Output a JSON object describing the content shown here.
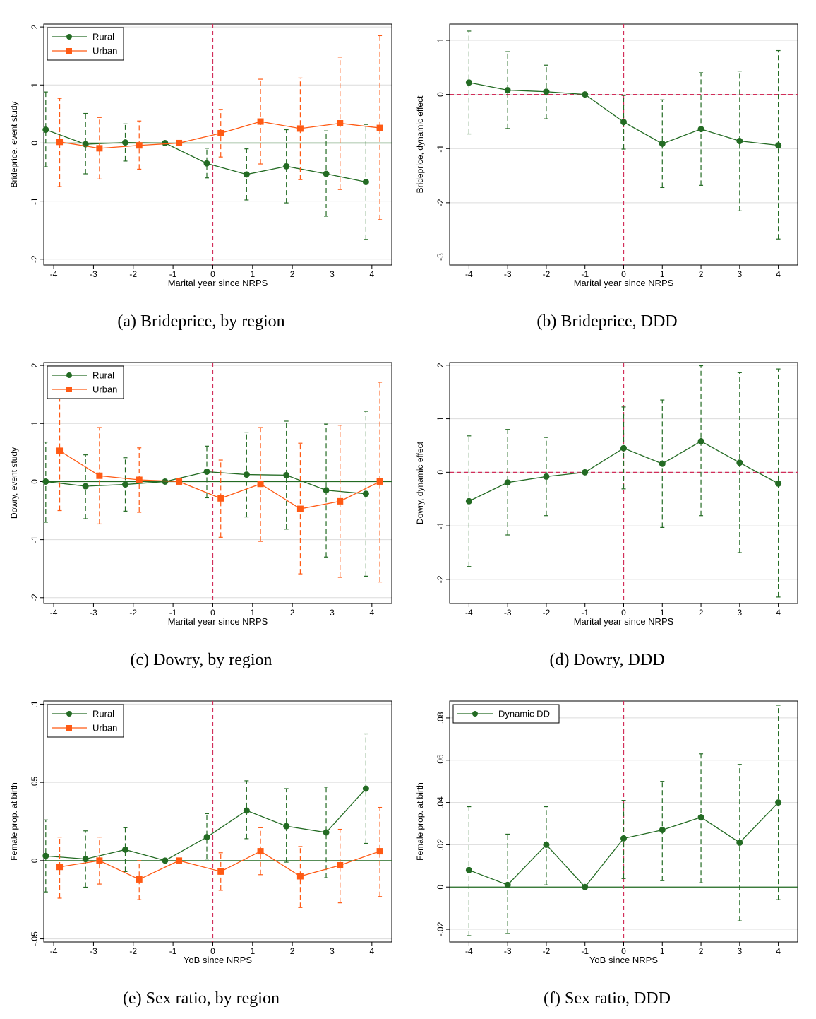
{
  "colors": {
    "rural": "#236B23",
    "urban": "#FF5A14",
    "vline": "#D22E5A",
    "grid": "#DCDCDC"
  },
  "chart_data": [
    {
      "id": "a",
      "type": "line",
      "caption": "(a) Brideprice, by region",
      "xlabel": "Marital year since NRPS",
      "ylabel": "Brideprice, event study",
      "xlim": [
        -4.25,
        4.5
      ],
      "ylim": [
        -2.1,
        2.05
      ],
      "yticks": [
        2,
        1,
        0,
        -1,
        -2
      ],
      "ytick_labels": [
        "2",
        "1",
        "0",
        "-1",
        "-2"
      ],
      "xticks": [
        -4,
        -3,
        -2,
        -1,
        0,
        1,
        2,
        3,
        4
      ],
      "legend_position": "top-left",
      "hline_dashed": false,
      "series": [
        {
          "name": "Rural",
          "marker": "circle",
          "color_key": "rural",
          "x": [
            -4.2,
            -3.2,
            -2.2,
            -1.2,
            -0.15,
            0.85,
            1.85,
            2.85,
            3.85
          ],
          "y": [
            0.23,
            -0.02,
            0.01,
            0.0,
            -0.35,
            -0.54,
            -0.4,
            -0.53,
            -0.67
          ],
          "lo": [
            -0.41,
            -0.53,
            -0.31,
            0.0,
            -0.6,
            -0.98,
            -1.03,
            -1.26,
            -1.66
          ],
          "hi": [
            0.88,
            0.51,
            0.33,
            0.0,
            -0.09,
            -0.1,
            0.23,
            0.21,
            0.32
          ]
        },
        {
          "name": "Urban",
          "marker": "square",
          "color_key": "urban",
          "x": [
            -3.85,
            -2.85,
            -1.85,
            -0.85,
            0.2,
            1.2,
            2.2,
            3.2,
            4.2
          ],
          "y": [
            0.02,
            -0.09,
            -0.04,
            0.0,
            0.17,
            0.37,
            0.25,
            0.34,
            0.26
          ],
          "lo": [
            -0.75,
            -0.62,
            -0.45,
            0.0,
            -0.24,
            -0.36,
            -0.63,
            -0.8,
            -1.32
          ],
          "hi": [
            0.77,
            0.44,
            0.38,
            0.0,
            0.58,
            1.1,
            1.12,
            1.48,
            1.85
          ]
        }
      ]
    },
    {
      "id": "b",
      "type": "line",
      "caption": "(b) Brideprice, DDD",
      "xlabel": "Marital year since NRPS",
      "ylabel": "Brideprice, dynamic effect",
      "xlim": [
        -4.5,
        4.5
      ],
      "ylim": [
        -3.15,
        1.3
      ],
      "yticks": [
        1,
        0,
        -1,
        -2,
        -3
      ],
      "ytick_labels": [
        "1",
        "0",
        "-1",
        "-2",
        "-3"
      ],
      "xticks": [
        -4,
        -3,
        -2,
        -1,
        0,
        1,
        2,
        3,
        4
      ],
      "legend_position": "none",
      "hline_dashed": true,
      "series": [
        {
          "marker": "circle",
          "color_key": "rural",
          "x": [
            -4,
            -3,
            -2,
            -1,
            0,
            1,
            2,
            3,
            4
          ],
          "y": [
            0.22,
            0.08,
            0.05,
            0.0,
            -0.51,
            -0.91,
            -0.64,
            -0.86,
            -0.94
          ],
          "lo": [
            -0.73,
            -0.63,
            -0.45,
            0.0,
            -1.01,
            -1.72,
            -1.68,
            -2.15,
            -2.67
          ],
          "hi": [
            1.17,
            0.79,
            0.54,
            0.0,
            -0.02,
            -0.1,
            0.4,
            0.43,
            0.81
          ]
        }
      ]
    },
    {
      "id": "c",
      "type": "line",
      "caption": "(c) Dowry, by region",
      "xlabel": "Marital year since NRPS",
      "ylabel": "Dowry, event study",
      "xlim": [
        -4.25,
        4.5
      ],
      "ylim": [
        -2.1,
        2.05
      ],
      "yticks": [
        2,
        1,
        0,
        -1,
        -2
      ],
      "ytick_labels": [
        "2",
        "1",
        "0",
        "-1",
        "-2"
      ],
      "xticks": [
        -4,
        -3,
        -2,
        -1,
        0,
        1,
        2,
        3,
        4
      ],
      "legend_position": "top-left",
      "hline_dashed": false,
      "series": [
        {
          "name": "Rural",
          "marker": "circle",
          "color_key": "rural",
          "x": [
            -4.2,
            -3.2,
            -2.2,
            -1.2,
            -0.15,
            0.85,
            1.85,
            2.85,
            3.85
          ],
          "y": [
            0.0,
            -0.08,
            -0.05,
            0.0,
            0.17,
            0.12,
            0.11,
            -0.15,
            -0.21
          ],
          "lo": [
            -0.7,
            -0.64,
            -0.51,
            0.0,
            -0.28,
            -0.61,
            -0.82,
            -1.3,
            -1.63
          ],
          "hi": [
            0.68,
            0.46,
            0.41,
            0.0,
            0.61,
            0.85,
            1.04,
            0.99,
            1.21
          ]
        },
        {
          "name": "Urban",
          "marker": "square",
          "color_key": "urban",
          "x": [
            -3.85,
            -2.85,
            -1.85,
            -0.85,
            0.2,
            1.2,
            2.2,
            3.2,
            4.2
          ],
          "y": [
            0.53,
            0.1,
            0.03,
            0.0,
            -0.29,
            -0.04,
            -0.47,
            -0.34,
            0.0
          ],
          "lo": [
            -0.5,
            -0.73,
            -0.53,
            0.0,
            -0.96,
            -1.03,
            -1.59,
            -1.65,
            -1.73
          ],
          "hi": [
            1.56,
            0.93,
            0.58,
            0.0,
            0.37,
            0.93,
            0.66,
            0.97,
            1.71
          ]
        }
      ]
    },
    {
      "id": "d",
      "type": "line",
      "caption": "(d) Dowry, DDD",
      "xlabel": "Marital year since NRPS",
      "ylabel": "Dowry, dynamic effect",
      "xlim": [
        -4.5,
        4.5
      ],
      "ylim": [
        -2.45,
        2.05
      ],
      "yticks": [
        2,
        1,
        0,
        -1,
        -2
      ],
      "ytick_labels": [
        "2",
        "1",
        "0",
        "-1",
        "-2"
      ],
      "xticks": [
        -4,
        -3,
        -2,
        -1,
        0,
        1,
        2,
        3,
        4
      ],
      "legend_position": "none",
      "hline_dashed": true,
      "series": [
        {
          "marker": "circle",
          "color_key": "rural",
          "x": [
            -4,
            -3,
            -2,
            -1,
            0,
            1,
            2,
            3,
            4
          ],
          "y": [
            -0.54,
            -0.19,
            -0.08,
            0.0,
            0.45,
            0.16,
            0.58,
            0.18,
            -0.21
          ],
          "lo": [
            -1.76,
            -1.17,
            -0.81,
            0.0,
            -0.31,
            -1.03,
            -0.81,
            -1.5,
            -2.33
          ],
          "hi": [
            0.68,
            0.8,
            0.65,
            0.0,
            1.22,
            1.35,
            1.99,
            1.86,
            1.93
          ]
        }
      ]
    },
    {
      "id": "e",
      "type": "line",
      "caption": "(e) Sex ratio, by region",
      "xlabel": "YoB since NRPS",
      "ylabel": "Female prop. at birth",
      "xlim": [
        -4.25,
        4.5
      ],
      "ylim": [
        -0.052,
        0.102
      ],
      "yticks": [
        0.1,
        0.05,
        0,
        -0.05
      ],
      "ytick_labels": [
        ".1",
        ".05",
        "0",
        "-.05"
      ],
      "xticks": [
        -4,
        -3,
        -2,
        -1,
        0,
        1,
        2,
        3,
        4
      ],
      "legend_position": "top-left",
      "hline_dashed": false,
      "series": [
        {
          "name": "Rural",
          "marker": "circle",
          "color_key": "rural",
          "x": [
            -4.2,
            -3.2,
            -2.2,
            -1.2,
            -0.15,
            0.85,
            1.85,
            2.85,
            3.85
          ],
          "y": [
            0.003,
            0.001,
            0.007,
            0.0,
            0.015,
            0.032,
            0.022,
            0.018,
            0.046
          ],
          "lo": [
            -0.02,
            -0.017,
            -0.007,
            0.0,
            0.001,
            0.014,
            -0.001,
            -0.011,
            0.011
          ],
          "hi": [
            0.026,
            0.019,
            0.021,
            0.0,
            0.03,
            0.051,
            0.046,
            0.047,
            0.081
          ]
        },
        {
          "name": "Urban",
          "marker": "square",
          "color_key": "urban",
          "x": [
            -3.85,
            -2.85,
            -1.85,
            -0.85,
            0.2,
            1.2,
            2.2,
            3.2,
            4.2
          ],
          "y": [
            -0.004,
            0.0,
            -0.012,
            0.0,
            -0.007,
            0.006,
            -0.01,
            -0.003,
            0.006
          ],
          "lo": [
            -0.024,
            -0.015,
            -0.025,
            0.0,
            -0.019,
            -0.009,
            -0.03,
            -0.027,
            -0.023
          ],
          "hi": [
            0.015,
            0.015,
            0.0,
            0.0,
            0.005,
            0.021,
            0.009,
            0.02,
            0.034
          ]
        }
      ]
    },
    {
      "id": "f",
      "type": "line",
      "caption": "(f) Sex ratio, DDD",
      "xlabel": "YoB since NRPS",
      "ylabel": "Female prop. at birth",
      "xlim": [
        -4.5,
        4.5
      ],
      "ylim": [
        -0.026,
        0.088
      ],
      "yticks": [
        0.08,
        0.06,
        0.04,
        0.02,
        0,
        -0.02
      ],
      "ytick_labels": [
        ".08",
        ".06",
        ".04",
        ".02",
        "0",
        "-.02"
      ],
      "xticks": [
        -4,
        -3,
        -2,
        -1,
        0,
        1,
        2,
        3,
        4
      ],
      "legend_position": "top-left",
      "hline_dashed": false,
      "series": [
        {
          "name": "Dynamic DD",
          "marker": "circle",
          "color_key": "rural",
          "x": [
            -4,
            -3,
            -2,
            -1,
            0,
            1,
            2,
            3,
            4
          ],
          "y": [
            0.008,
            0.001,
            0.02,
            0.0,
            0.023,
            0.027,
            0.033,
            0.021,
            0.04
          ],
          "lo": [
            -0.023,
            -0.022,
            0.001,
            0.0,
            0.004,
            0.003,
            0.002,
            -0.016,
            -0.006
          ],
          "hi": [
            0.038,
            0.025,
            0.038,
            0.0,
            0.041,
            0.05,
            0.063,
            0.058,
            0.086
          ]
        }
      ]
    }
  ]
}
